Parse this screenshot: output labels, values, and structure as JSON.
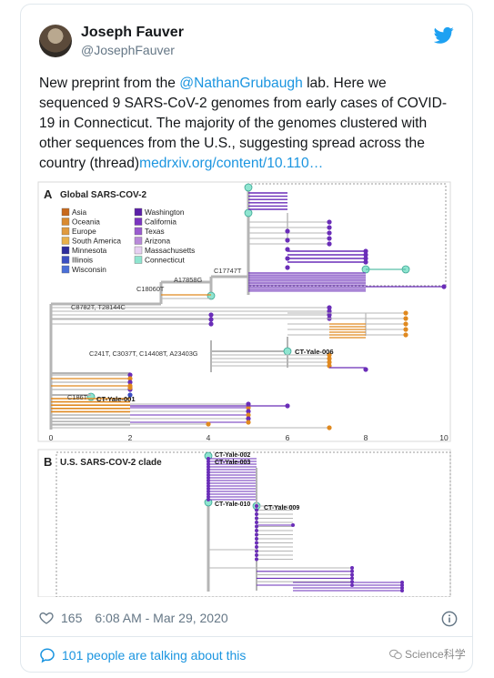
{
  "tweet": {
    "display_name": "Joseph Fauver",
    "handle": "@JosephFauver",
    "icon": "twitter-bird-icon",
    "brand_color": "#1da1f2",
    "text_pre": "New preprint from the ",
    "mention": "@NathanGrubaugh",
    "text_post": " lab. Here we sequenced 9 SARS-CoV-2 genomes from early cases of COVID-19 in Connecticut. The majority of the genomes clustered with other sequences from the U.S., suggesting spread across the country (thread)",
    "link": "medrxiv.org/content/10.110…",
    "like_count": "165",
    "timestamp": "6:08 AM - Mar 29, 2020",
    "talking": "101 people are talking about this"
  },
  "figure": {
    "panel_a": {
      "letter": "A",
      "title": "Global SARS-COV-2",
      "legend_left": [
        "Asia",
        "Oceania",
        "Europe",
        "South America",
        "Minnesota",
        "Illinois",
        "Wisconsin"
      ],
      "legend_right": [
        "Washington",
        "California",
        "Texas",
        "Arizona",
        "Massachusetts",
        "Connecticut"
      ],
      "legend_colors": {
        "Asia": "#c8691c",
        "Oceania": "#d98a2f",
        "Europe": "#e09a3e",
        "South America": "#e8b04a",
        "Minnesota": "#2c2c9c",
        "Illinois": "#3a4fc2",
        "Wisconsin": "#4a6fd8",
        "Washington": "#5b1fa8",
        "California": "#7b35c0",
        "Texas": "#9a5ccf",
        "Arizona": "#b98ad9",
        "Massachusetts": "#e7d0f2",
        "Connecticut": "#8fe5d0"
      },
      "mutations": [
        "C17747T",
        "A17858G",
        "C18060T",
        "C8782T, T28144C",
        "C241T, C3037T, C14408T, A23403G",
        "C186T"
      ],
      "samples": [
        "CT-Yale-006",
        "CT-Yale-001"
      ],
      "x_ticks": [
        "0",
        "2",
        "4",
        "6",
        "8",
        "10"
      ]
    },
    "panel_b": {
      "letter": "B",
      "title": "U.S. SARS-COV-2 clade",
      "samples": [
        "CT-Yale-002",
        "CT-Yale-003",
        "CT-Yale-010",
        "CT-Yale-009"
      ]
    }
  },
  "watermark": "Science科学"
}
